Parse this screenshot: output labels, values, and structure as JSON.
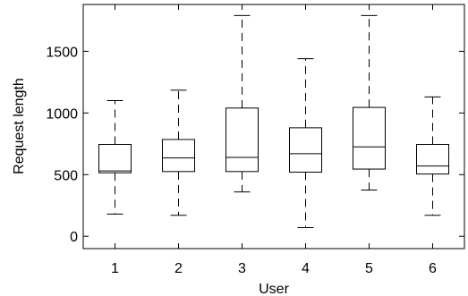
{
  "chart_data": {
    "type": "box",
    "title": "",
    "xlabel": "User",
    "ylabel": "Request length",
    "categories": [
      "1",
      "2",
      "3",
      "4",
      "5",
      "6"
    ],
    "xlim": [
      0.5,
      6.5
    ],
    "ylim": [
      -100,
      1880
    ],
    "yticks": [
      0,
      500,
      1000,
      1500
    ],
    "ytick_labels": [
      "0",
      "500",
      "1000",
      "1500"
    ],
    "grid": false,
    "boxes": [
      {
        "category": "1",
        "whisker_low": 180,
        "q1": 515,
        "median": 530,
        "q3": 745,
        "whisker_high": 1100
      },
      {
        "category": "2",
        "whisker_low": 170,
        "q1": 525,
        "median": 635,
        "q3": 785,
        "whisker_high": 1185
      },
      {
        "category": "3",
        "whisker_low": 360,
        "q1": 525,
        "median": 640,
        "q3": 1040,
        "whisker_high": 1790
      },
      {
        "category": "4",
        "whisker_low": 70,
        "q1": 520,
        "median": 670,
        "q3": 880,
        "whisker_high": 1440
      },
      {
        "category": "5",
        "whisker_low": 375,
        "q1": 545,
        "median": 725,
        "q3": 1045,
        "whisker_high": 1790
      },
      {
        "category": "6",
        "whisker_low": 170,
        "q1": 505,
        "median": 570,
        "q3": 745,
        "whisker_high": 1130
      }
    ],
    "colors": {
      "box": "#000000",
      "whisker": "#000000",
      "axis": "#000000"
    }
  }
}
